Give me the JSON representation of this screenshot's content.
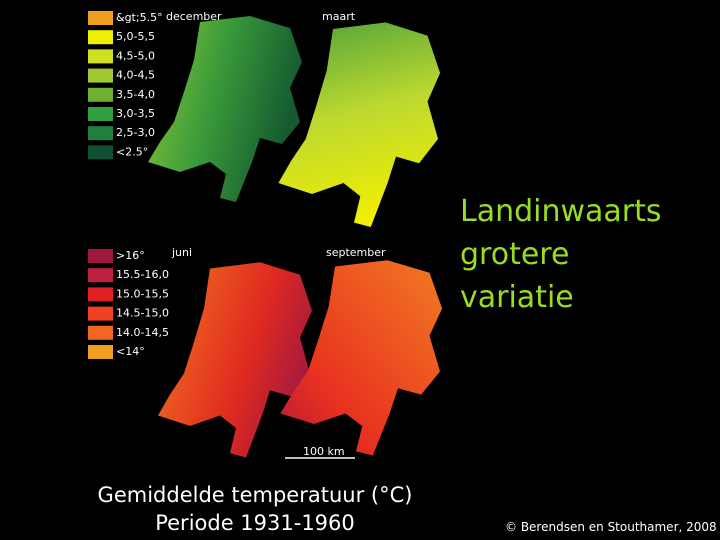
{
  "maps": [
    {
      "label": "december"
    },
    {
      "label": "maart"
    },
    {
      "label": "juni"
    },
    {
      "label": "september"
    }
  ],
  "legend_winter": [
    "&gt;5.5°",
    "5,0-5,5",
    "4,5-5,0",
    "4,0-4,5",
    "3,5-4,0",
    "3,0-3,5",
    "2,5-3,0",
    "<2.5°"
  ],
  "legend_summer": [
    ">16°",
    "15.5-16,0",
    "15.0-15,5",
    "14.5-15,0",
    "14.0-14,5",
    "<14°"
  ],
  "scale_bar": "100 km",
  "side_text": [
    "Landinwaarts",
    "grotere",
    "variatie"
  ],
  "caption": [
    "Gemiddelde temperatuur (°C)",
    "Periode 1931-1960"
  ],
  "copyright": "© Berendsen en Stouthamer, 2008"
}
